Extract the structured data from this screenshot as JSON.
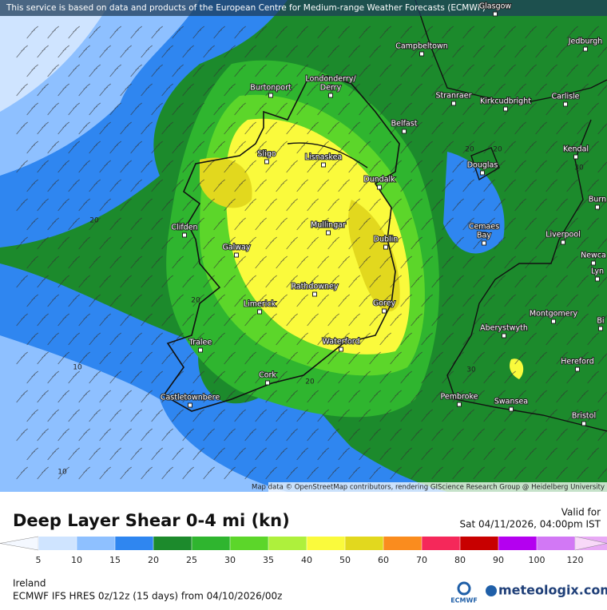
{
  "header": {
    "notice": "This service is based on data and products of the European Centre for Medium-range Weather Forecasts (ECMWF)"
  },
  "map": {
    "places": [
      "Glasgow",
      "Campbeltown",
      "Jedburgh",
      "Londonderry/",
      "Derry",
      "Burtonport",
      "Stranraer",
      "Kirkcudbright",
      "Carlisle",
      "Belfast",
      "Sligo",
      "Lisnaskea",
      "Kendal",
      "Douglas",
      "Dundalk",
      "Burn",
      "Clifden",
      "Mullingar",
      "Cemaes",
      "Bay",
      "Liverpool",
      "Galway",
      "Dublin",
      "Newca",
      "Lyn",
      "Rathdowney",
      "Limerick",
      "Gorey",
      "Montgomery",
      "Bi",
      "Aberystwyth",
      "Tralee",
      "Waterford",
      "Hereford",
      "Cork",
      "Castletownbere",
      "Pembroke",
      "Swansea",
      "Bristol"
    ],
    "contour_labels": [
      20,
      20,
      20,
      30,
      10,
      20,
      20,
      30,
      10
    ],
    "attribution": "Map data © OpenStreetMap contributors, rendering GIScience Research Group @ Heidelberg University"
  },
  "legend": {
    "title": "Deep Layer Shear 0-4 mi (kn)",
    "valid_label": "Valid for",
    "valid_time": "Sat 04/11/2026, 04:00pm IST",
    "ticks": [
      5,
      10,
      15,
      20,
      25,
      30,
      35,
      40,
      50,
      60,
      70,
      80,
      90,
      100,
      120
    ],
    "colors": [
      "#f4f8ff",
      "#cfe4ff",
      "#8ec0ff",
      "#2f86f0",
      "#1c8a2c",
      "#2fb52f",
      "#5cd62a",
      "#aef03c",
      "#fafa3c",
      "#e2d81e",
      "#fa8c1e",
      "#f5285a",
      "#c80000",
      "#b400f0",
      "#d278f5",
      "#e8aaf5",
      "#f8d8f8"
    ]
  },
  "footer": {
    "region": "Ireland",
    "model": "ECMWF IFS HRES 0z/12z (15 days) from  04/10/2026/00z",
    "ecmwf": "ECMWF",
    "brand": "meteologix.com"
  }
}
